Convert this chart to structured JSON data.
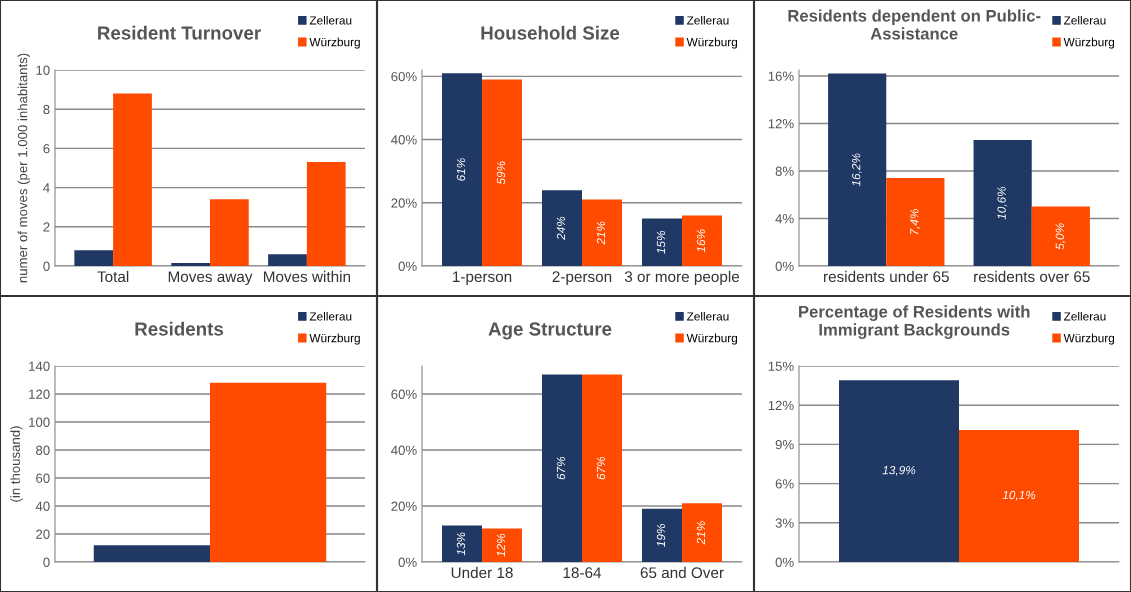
{
  "chart_data": [
    {
      "type": "bar",
      "title": "Resident Turnover",
      "ylabel": "numer of moves (per 1.000 inhabitants)",
      "categories": [
        "Total",
        "Moves away",
        "Moves within"
      ],
      "series": [
        {
          "name": "Zellerau",
          "color": "#1f3864",
          "values": [
            0.8,
            0.15,
            0.6
          ]
        },
        {
          "name": "Würzburg",
          "color": "#ff4b00",
          "values": [
            8.8,
            3.4,
            5.3
          ]
        }
      ],
      "ylim": [
        0,
        10
      ],
      "yticks": [
        0,
        2,
        4,
        6,
        8,
        10
      ],
      "grid": "y",
      "legend": "top right"
    },
    {
      "type": "bar",
      "title": "Household Size",
      "categories": [
        "1-person",
        "2-person",
        "3 or more people"
      ],
      "series": [
        {
          "name": "Zellerau",
          "color": "#1f3864",
          "values": [
            61,
            24,
            15
          ],
          "value_labels": [
            "61%",
            "24%",
            "15%"
          ]
        },
        {
          "name": "Würzburg",
          "color": "#ff4b00",
          "values": [
            59,
            21,
            16
          ],
          "value_labels": [
            "59%",
            "21%",
            "16%"
          ]
        }
      ],
      "ylim": [
        0,
        62
      ],
      "yticks": [
        {
          "value": 0,
          "label": "0%"
        },
        {
          "value": 20,
          "label": "20%"
        },
        {
          "value": 40,
          "label": "40%"
        },
        {
          "value": 60,
          "label": "60%"
        }
      ],
      "grid": "y",
      "legend": "top right"
    },
    {
      "type": "bar",
      "title": "Residents dependent on Public-\nAssistance",
      "categories": [
        "residents under 65",
        "residents over 65"
      ],
      "series": [
        {
          "name": "Zellerau",
          "color": "#1f3864",
          "values": [
            16.2,
            10.6
          ],
          "value_labels": [
            "16,2%",
            "10,6%"
          ]
        },
        {
          "name": "Würzburg",
          "color": "#ff4b00",
          "values": [
            7.4,
            5.0
          ],
          "value_labels": [
            "7,4%",
            "5,0%"
          ]
        }
      ],
      "ylim": [
        0,
        16.5
      ],
      "yticks": [
        {
          "value": 0,
          "label": "0%"
        },
        {
          "value": 4,
          "label": "4%"
        },
        {
          "value": 8,
          "label": "8%"
        },
        {
          "value": 12,
          "label": "12%"
        },
        {
          "value": 16,
          "label": "16%"
        }
      ],
      "grid": "y",
      "legend": "top right"
    },
    {
      "type": "bar",
      "title": "Residents",
      "ylabel": "(in thousand)",
      "categories": [
        null
      ],
      "series": [
        {
          "name": "Zellerau",
          "color": "#1f3864",
          "values": [
            12
          ]
        },
        {
          "name": "Würzburg",
          "color": "#ff4b00",
          "values": [
            128
          ]
        }
      ],
      "ylim": [
        0,
        140
      ],
      "yticks": [
        0,
        20,
        40,
        60,
        80,
        100,
        120,
        140
      ],
      "grid": "y",
      "legend": "top right"
    },
    {
      "type": "bar",
      "title": "Age Structure",
      "categories": [
        "Under 18",
        "18-64",
        "65 and Over"
      ],
      "series": [
        {
          "name": "Zellerau",
          "color": "#1f3864",
          "values": [
            13,
            67,
            19
          ],
          "value_labels": [
            "13%",
            "67%",
            "19%"
          ]
        },
        {
          "name": "Würzburg",
          "color": "#ff4b00",
          "values": [
            12,
            67,
            21
          ],
          "value_labels": [
            "12%",
            "67%",
            "21%"
          ]
        }
      ],
      "ylim": [
        0,
        70
      ],
      "yticks": [
        {
          "value": 0,
          "label": "0%"
        },
        {
          "value": 20,
          "label": "20%"
        },
        {
          "value": 40,
          "label": "40%"
        },
        {
          "value": 60,
          "label": "60%"
        }
      ],
      "grid": "y",
      "legend": "top right"
    },
    {
      "type": "bar",
      "title": "Percentage of Residents with\nImmigrant Backgrounds",
      "categories": [
        null
      ],
      "series": [
        {
          "name": "Zellerau",
          "color": "#1f3864",
          "values": [
            13.9
          ],
          "value_labels": [
            "13,9%"
          ]
        },
        {
          "name": "Würzburg",
          "color": "#ff4b00",
          "values": [
            10.1
          ],
          "value_labels": [
            "10,1%"
          ]
        }
      ],
      "ylim": [
        0,
        15
      ],
      "yticks": [
        {
          "value": 0,
          "label": "0%"
        },
        {
          "value": 3,
          "label": "3%"
        },
        {
          "value": 6,
          "label": "6%"
        },
        {
          "value": 9,
          "label": "9%"
        },
        {
          "value": 12,
          "label": "12%"
        },
        {
          "value": 15,
          "label": "15%"
        }
      ],
      "grid": "y",
      "legend": "top right"
    }
  ]
}
